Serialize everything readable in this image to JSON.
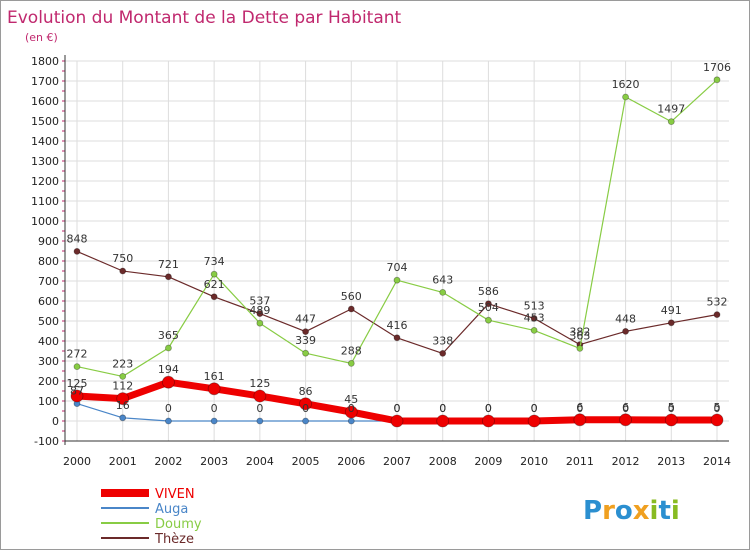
{
  "chart_data": {
    "type": "line",
    "title": "Evolution du Montant de la Dette par Habitant",
    "subtitle": "(en €)",
    "xlabel": "",
    "ylabel": "",
    "ylim": [
      -100,
      1800
    ],
    "yticks": [
      -100,
      0,
      100,
      200,
      300,
      400,
      500,
      600,
      700,
      800,
      900,
      1000,
      1100,
      1200,
      1300,
      1400,
      1500,
      1600,
      1700,
      1800
    ],
    "grid": true,
    "legend_position": "bottom-left",
    "categories": [
      "2000",
      "2001",
      "2002",
      "2003",
      "2004",
      "2005",
      "2006",
      "2007",
      "2008",
      "2009",
      "2010",
      "2011",
      "2012",
      "2013",
      "2014"
    ],
    "series": [
      {
        "name": "Thèze",
        "color": "#6b2a2a",
        "values": [
          848,
          750,
          721,
          621,
          537,
          447,
          560,
          416,
          338,
          586,
          513,
          382,
          448,
          491,
          532
        ],
        "labels": [
          "848",
          "750",
          "721",
          "621",
          "537",
          "447",
          "560",
          "416",
          "338",
          "586",
          "513",
          "382",
          "448",
          "491",
          "532"
        ]
      },
      {
        "name": "Doumy",
        "color": "#88cc44",
        "values": [
          272,
          223,
          365,
          734,
          489,
          339,
          288,
          704,
          643,
          504,
          453,
          363,
          1620,
          1497,
          1706
        ],
        "labels": [
          "272",
          "223",
          "365",
          "734",
          "489",
          "339",
          "288",
          "704",
          "643",
          "504",
          "453",
          "363",
          "1620",
          "1497",
          "1706"
        ]
      },
      {
        "name": "Auga",
        "color": "#4a86c8",
        "values": [
          87,
          16,
          0,
          0,
          0,
          0,
          0,
          0,
          0,
          0,
          0,
          0,
          0,
          0,
          0
        ],
        "labels": [
          "87",
          "16",
          "0",
          "0",
          "0",
          "0",
          "0",
          "0",
          "0",
          "0",
          "0",
          "0",
          "0",
          "0",
          "0"
        ]
      },
      {
        "name": "VIVEN",
        "color": "#ee0000",
        "values": [
          125,
          112,
          194,
          161,
          125,
          86,
          45,
          0,
          0,
          0,
          0,
          6,
          6,
          5,
          5
        ],
        "labels": [
          "125",
          "112",
          "194",
          "161",
          "125",
          "86",
          "45",
          "0",
          "0",
          "0",
          "0",
          "6",
          "6",
          "5",
          "5"
        ]
      }
    ]
  },
  "legend": [
    {
      "name": "VIVEN",
      "color": "#ee0000"
    },
    {
      "name": "Auga",
      "color": "#4a86c8"
    },
    {
      "name": "Doumy",
      "color": "#88cc44"
    },
    {
      "name": "Thèze",
      "color": "#6b2a2a"
    }
  ],
  "logo": {
    "letters": [
      "P",
      "r",
      "o",
      "x",
      "i",
      "t",
      "i"
    ],
    "colors": [
      "#2b8fd0",
      "#f0a020",
      "#2b8fd0",
      "#f0a020",
      "#88bb22",
      "#2b8fd0",
      "#88bb22"
    ]
  }
}
